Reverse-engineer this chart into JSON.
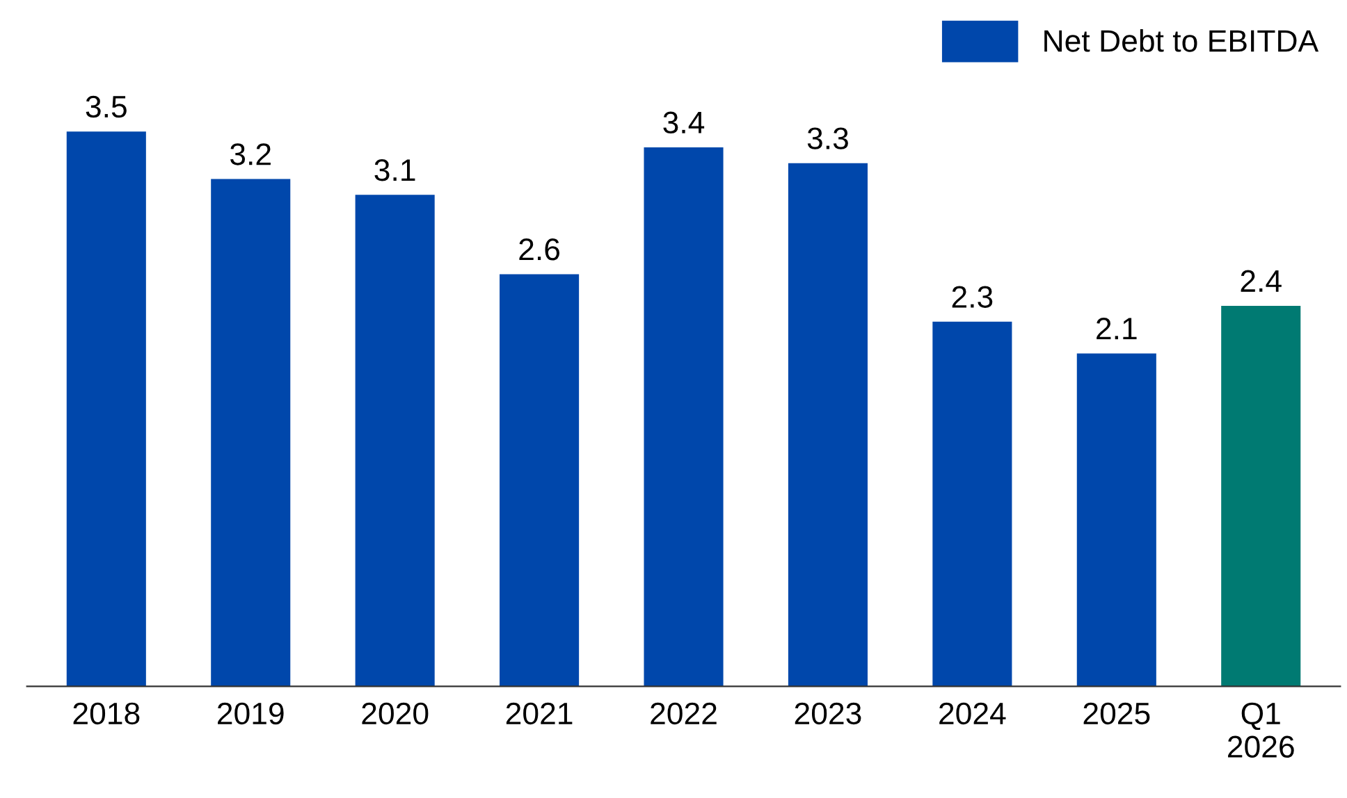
{
  "chart_data": {
    "type": "bar",
    "categories": [
      "2018",
      "2019",
      "2020",
      "2021",
      "2022",
      "2023",
      "2024",
      "2025",
      "Q1\n2026"
    ],
    "series": [
      {
        "name": "Net Debt to EBITDA",
        "color": "#0047ab",
        "values": [
          3.5,
          3.2,
          3.1,
          2.6,
          3.4,
          3.3,
          2.3,
          2.1,
          null
        ]
      },
      {
        "color": "#007a72",
        "values": [
          null,
          null,
          null,
          null,
          null,
          null,
          null,
          null,
          2.4
        ]
      }
    ],
    "tick_labels": "x",
    "data_labels": true,
    "grid": false,
    "legend": "top right"
  }
}
